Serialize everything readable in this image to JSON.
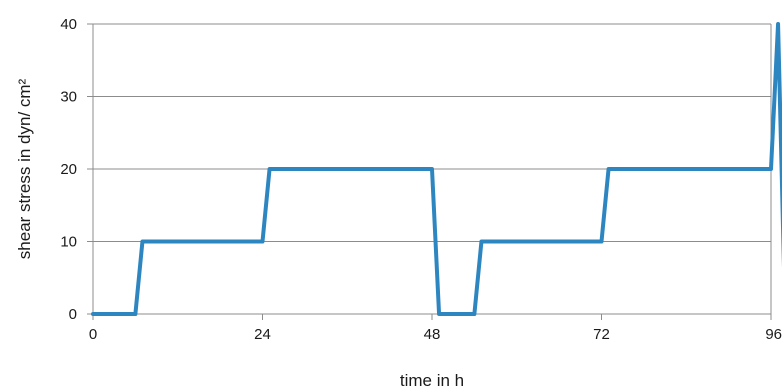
{
  "chart_data": {
    "type": "line",
    "xlabel": "time in h",
    "ylabel": "shear stress in dyn/ cm²",
    "xlim": [
      0,
      96
    ],
    "ylim": [
      0,
      40
    ],
    "x_ticks": [
      "0",
      "24",
      "48",
      "72",
      "96"
    ],
    "y_ticks": [
      "0",
      "10",
      "20",
      "30",
      "40"
    ],
    "grid": "horizontal",
    "legend": "none",
    "series": [
      {
        "color": "#2e86c1",
        "points": [
          [
            0,
            0
          ],
          [
            6,
            0
          ],
          [
            7,
            10
          ],
          [
            24,
            10
          ],
          [
            25,
            20
          ],
          [
            48,
            20
          ],
          [
            49,
            0
          ],
          [
            54,
            0
          ],
          [
            55,
            10
          ],
          [
            72,
            10
          ],
          [
            73,
            20
          ],
          [
            96,
            20
          ],
          [
            97,
            40
          ],
          [
            98,
            0
          ]
        ]
      }
    ]
  }
}
